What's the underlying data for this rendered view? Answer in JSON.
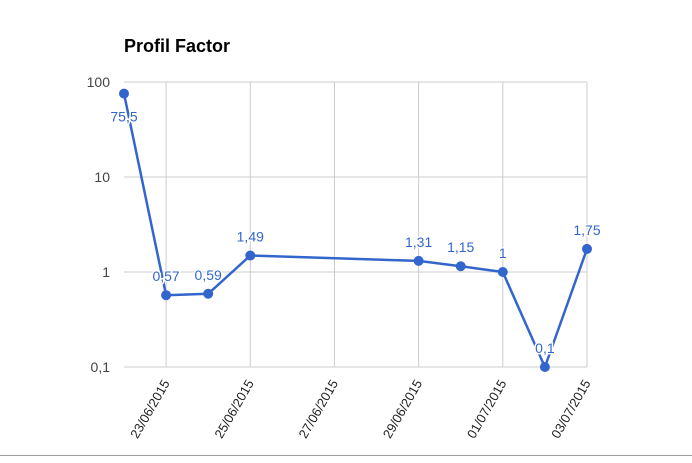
{
  "chart_data": {
    "type": "line",
    "title": "Profil Factor",
    "xlabel": "",
    "ylabel": "",
    "y_scale": "log",
    "ylim": [
      0.1,
      100
    ],
    "y_ticks": [
      {
        "value": 100,
        "label": "100"
      },
      {
        "value": 10,
        "label": "10"
      },
      {
        "value": 1,
        "label": "1"
      },
      {
        "value": 0.1,
        "label": "0,1"
      }
    ],
    "xlim": [
      "2015-06-22",
      "2015-07-03"
    ],
    "x_ticks": [
      {
        "value": "2015-06-23",
        "label": "23/06/2015"
      },
      {
        "value": "2015-06-25",
        "label": "25/06/2015"
      },
      {
        "value": "2015-06-27",
        "label": "27/06/2015"
      },
      {
        "value": "2015-06-29",
        "label": "29/06/2015"
      },
      {
        "value": "2015-07-01",
        "label": "01/07/2015"
      },
      {
        "value": "2015-07-03",
        "label": "03/07/2015"
      }
    ],
    "grid": true,
    "legend": "none",
    "series": [
      {
        "color": "#3366cc",
        "points": [
          {
            "x": "2015-06-22",
            "y": 75.5,
            "label": "75,5"
          },
          {
            "x": "2015-06-23",
            "y": 0.57,
            "label": "0,57"
          },
          {
            "x": "2015-06-24",
            "y": 0.59,
            "label": "0,59"
          },
          {
            "x": "2015-06-25",
            "y": 1.49,
            "label": "1,49"
          },
          {
            "x": "2015-06-29",
            "y": 1.31,
            "label": "1,31"
          },
          {
            "x": "2015-06-30",
            "y": 1.15,
            "label": "1,15"
          },
          {
            "x": "2015-07-01",
            "y": 1,
            "label": "1"
          },
          {
            "x": "2015-07-02",
            "y": 0.1,
            "label": "0,1"
          },
          {
            "x": "2015-07-03",
            "y": 1.75,
            "label": "1,75"
          }
        ]
      }
    ]
  }
}
